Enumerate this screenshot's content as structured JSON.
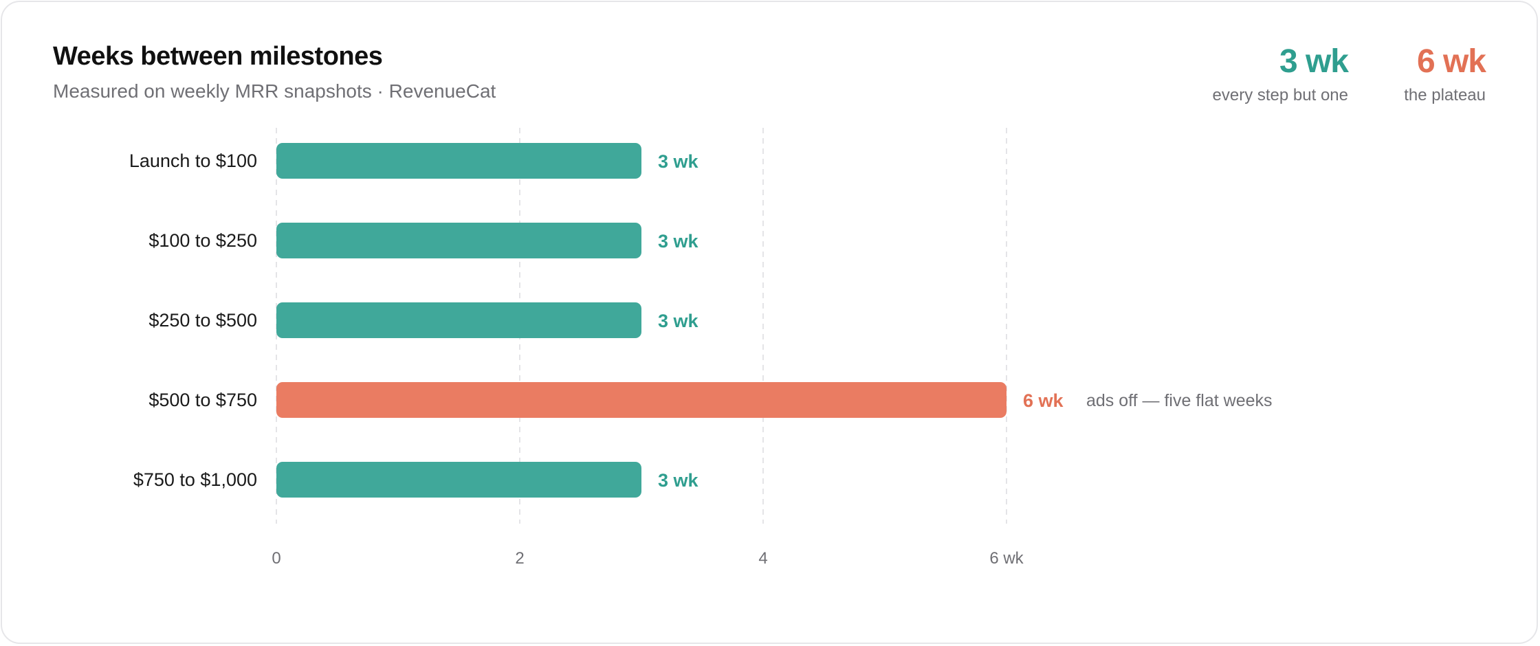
{
  "header": {
    "title": "Weeks between milestones",
    "subtitle": "Measured on weekly MRR snapshots · RevenueCat"
  },
  "stats": [
    {
      "value": "3 wk",
      "label": "every step but one",
      "color": "#2f9e8f"
    },
    {
      "value": "6 wk",
      "label": "the plateau",
      "color": "#e27155"
    }
  ],
  "colors": {
    "normal_bar": "#40a89a",
    "normal_text": "#2f9e8f",
    "highlight_bar": "#ea7c62",
    "highlight_text": "#e27155"
  },
  "chart_data": {
    "type": "bar",
    "orientation": "horizontal",
    "categories": [
      "Launch to $100",
      "$100 to $250",
      "$250 to $500",
      "$500 to $750",
      "$750 to $1,000"
    ],
    "values": [
      3,
      3,
      3,
      6,
      3
    ],
    "value_labels": [
      "3 wk",
      "3 wk",
      "3 wk",
      "6 wk",
      "3 wk"
    ],
    "highlight": [
      false,
      false,
      false,
      true,
      false
    ],
    "annotations": [
      "",
      "",
      "",
      "ads off — five flat weeks",
      ""
    ],
    "xlim": [
      0,
      6
    ],
    "xticks": [
      0,
      2,
      4,
      6
    ],
    "xtick_labels": [
      "0",
      "2",
      "4",
      "6 wk"
    ],
    "grid": true
  }
}
